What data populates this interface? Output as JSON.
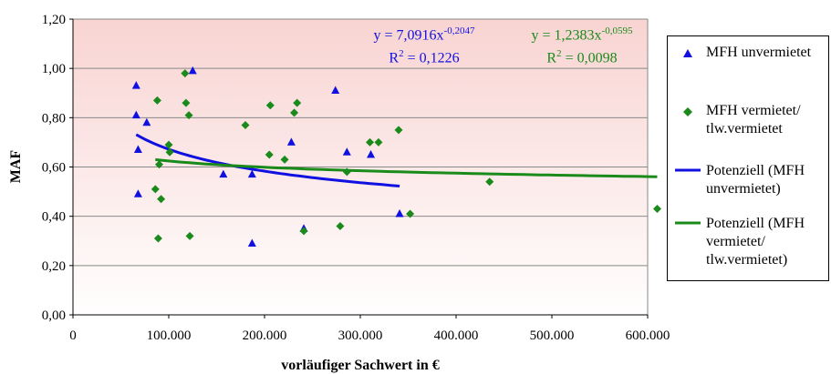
{
  "chart_data": {
    "type": "scatter",
    "title": "",
    "xlabel": "vorläufiger Sachwert in €",
    "ylabel": "MAF",
    "xlim": [
      0,
      600000
    ],
    "ylim": [
      0,
      1.2
    ],
    "x_ticks": [
      0,
      100000,
      200000,
      300000,
      400000,
      500000,
      600000
    ],
    "x_tick_labels": [
      "0",
      "100.000",
      "200.000",
      "300.000",
      "400.000",
      "500.000",
      "600.000"
    ],
    "y_ticks": [
      0,
      0.2,
      0.4,
      0.6,
      0.8,
      1.0,
      1.2
    ],
    "y_tick_labels": [
      "0,00",
      "0,20",
      "0,40",
      "0,60",
      "0,80",
      "1,00",
      "1,20"
    ],
    "grid": "horizontal",
    "background": "gradient light pink",
    "legend_position": "right",
    "series": [
      {
        "name": "MFH unvermietet",
        "marker": "triangle",
        "color": "#1010e0",
        "points": [
          [
            66000,
            0.93
          ],
          [
            66000,
            0.81
          ],
          [
            68000,
            0.67
          ],
          [
            68000,
            0.49
          ],
          [
            77000,
            0.78
          ],
          [
            125000,
            0.99
          ],
          [
            157000,
            0.57
          ],
          [
            187000,
            0.29
          ],
          [
            187000,
            0.57
          ],
          [
            228000,
            0.7
          ],
          [
            241000,
            0.35
          ],
          [
            274000,
            0.91
          ],
          [
            286000,
            0.66
          ],
          [
            311000,
            0.65
          ],
          [
            341000,
            0.41
          ]
        ]
      },
      {
        "name": "MFH vermietet/\ntlw.vermietet",
        "marker": "diamond",
        "color": "#1a8a1a",
        "points": [
          [
            86000,
            0.51
          ],
          [
            88000,
            0.87
          ],
          [
            89000,
            0.31
          ],
          [
            90000,
            0.61
          ],
          [
            92000,
            0.47
          ],
          [
            100000,
            0.69
          ],
          [
            101000,
            0.66
          ],
          [
            117000,
            0.98
          ],
          [
            118000,
            0.86
          ],
          [
            121000,
            0.81
          ],
          [
            122000,
            0.32
          ],
          [
            180000,
            0.77
          ],
          [
            206000,
            0.85
          ],
          [
            205000,
            0.65
          ],
          [
            221000,
            0.63
          ],
          [
            231000,
            0.82
          ],
          [
            234000,
            0.86
          ],
          [
            241000,
            0.34
          ],
          [
            279000,
            0.36
          ],
          [
            286000,
            0.58
          ],
          [
            310000,
            0.7
          ],
          [
            319000,
            0.7
          ],
          [
            340000,
            0.75
          ],
          [
            352000,
            0.41
          ],
          [
            435000,
            0.54
          ],
          [
            610000,
            0.43
          ]
        ]
      },
      {
        "name": "Potenziell (MFH\nunvermietet)",
        "type": "line",
        "color": "#1010e0",
        "fit": {
          "a": 7.0916,
          "b": -0.2047
        },
        "x_range": [
          66000,
          341000
        ]
      },
      {
        "name": "Potenziell (MFH\nvermietet/\ntlw.vermietet)",
        "type": "line",
        "color": "#1a8a1a",
        "fit": {
          "a": 1.2383,
          "b": -0.0595
        },
        "x_range": [
          86000,
          610000
        ]
      }
    ],
    "annotations": {
      "eq1": {
        "prefix": "y = 7,0916x",
        "exp": "-0,2047",
        "r2_prefix": "R",
        "r2_exp": "2",
        "r2_value": " = 0,1226",
        "color": "#1010e0"
      },
      "eq2": {
        "prefix": "y = 1,2383x",
        "exp": "-0,0595",
        "r2_prefix": "R",
        "r2_exp": "2",
        "r2_value": " = 0,0098",
        "color": "#1a8a1a"
      }
    }
  }
}
